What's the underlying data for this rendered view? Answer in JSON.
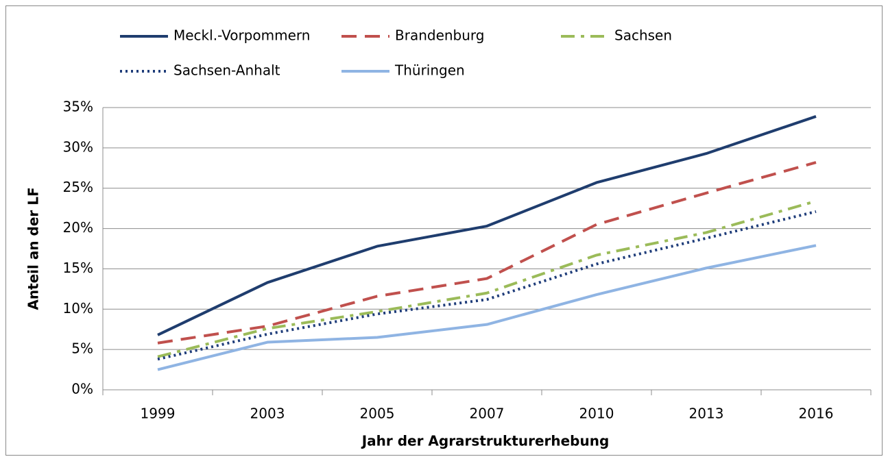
{
  "chart_data": {
    "type": "line",
    "categories": [
      "1999",
      "2003",
      "2005",
      "2007",
      "2010",
      "2013",
      "2016"
    ],
    "series": [
      {
        "name": "Meckl.-Vorpommern",
        "color": "#1f3d6e",
        "dash": "solid",
        "values": [
          6.8,
          13.3,
          17.8,
          20.3,
          25.7,
          29.3,
          33.9
        ]
      },
      {
        "name": "Brandenburg",
        "color": "#c0504d",
        "dash": "dashed",
        "values": [
          5.8,
          7.9,
          11.6,
          13.8,
          20.5,
          24.4,
          28.2
        ]
      },
      {
        "name": "Sachsen",
        "color": "#9bbb59",
        "dash": "dashdot",
        "values": [
          4.1,
          7.6,
          9.7,
          12.0,
          16.7,
          19.5,
          23.4
        ]
      },
      {
        "name": "Sachsen-Anhalt",
        "color": "#1f3d7a",
        "dash": "dotted",
        "values": [
          3.8,
          6.9,
          9.4,
          11.2,
          15.6,
          18.8,
          22.1
        ]
      },
      {
        "name": "Thüringen",
        "color": "#8fb4e3",
        "dash": "solid",
        "values": [
          2.5,
          5.9,
          6.5,
          8.1,
          11.8,
          15.1,
          17.9
        ]
      }
    ],
    "ylim": [
      0,
      35
    ],
    "yticks": [
      {
        "value": 0,
        "label": "0%"
      },
      {
        "value": 5,
        "label": "5%"
      },
      {
        "value": 10,
        "label": "10%"
      },
      {
        "value": 15,
        "label": "15%"
      },
      {
        "value": 20,
        "label": "20%"
      },
      {
        "value": 25,
        "label": "25%"
      },
      {
        "value": 30,
        "label": "30%"
      },
      {
        "value": 35,
        "label": "35%"
      }
    ],
    "grid": true,
    "legend": "top",
    "y_label": "Anteil an der LF",
    "x_label": "Jahr der Agrarstrukturerhebung"
  }
}
